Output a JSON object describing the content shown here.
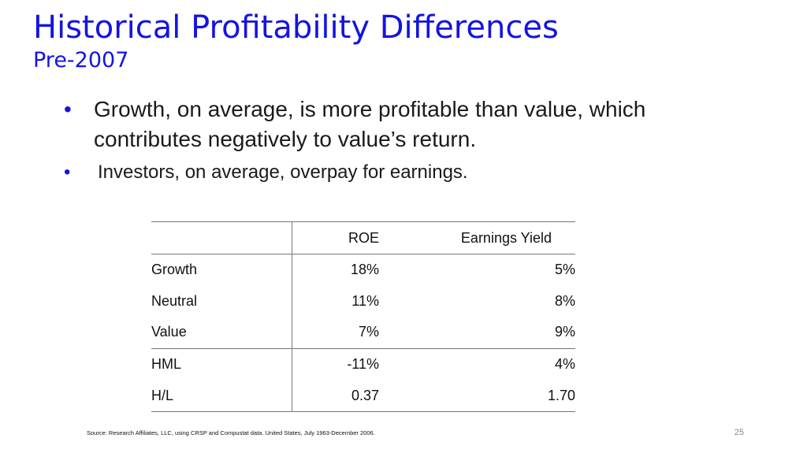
{
  "slide": {
    "title": "Historical Profitability Differences",
    "subtitle": "Pre-2007",
    "bullets": [
      "Growth, on average, is more profitable than value, which contributes negatively to value’s return.",
      "Investors, on average, overpay for earnings."
    ],
    "bullet_glyph": "•",
    "source": "Source: Research Affiliates, LLC, using CRSP and Compustat data. United States, July 1963-December 2006.",
    "page_number": "25"
  },
  "table": {
    "headers": [
      "",
      "ROE",
      "Earnings Yield"
    ],
    "rows": [
      [
        "Growth",
        "18%",
        "5%"
      ],
      [
        "Neutral",
        "11%",
        "8%"
      ],
      [
        "Value",
        "7%",
        "9%"
      ],
      [
        "HML",
        "-11%",
        "4%"
      ],
      [
        "H/L",
        "0.37",
        "1.70"
      ]
    ]
  },
  "colors": {
    "title": "#1414e0",
    "bullet": "#1414e0",
    "text": "#1a1a1a",
    "rule": "#777777"
  }
}
